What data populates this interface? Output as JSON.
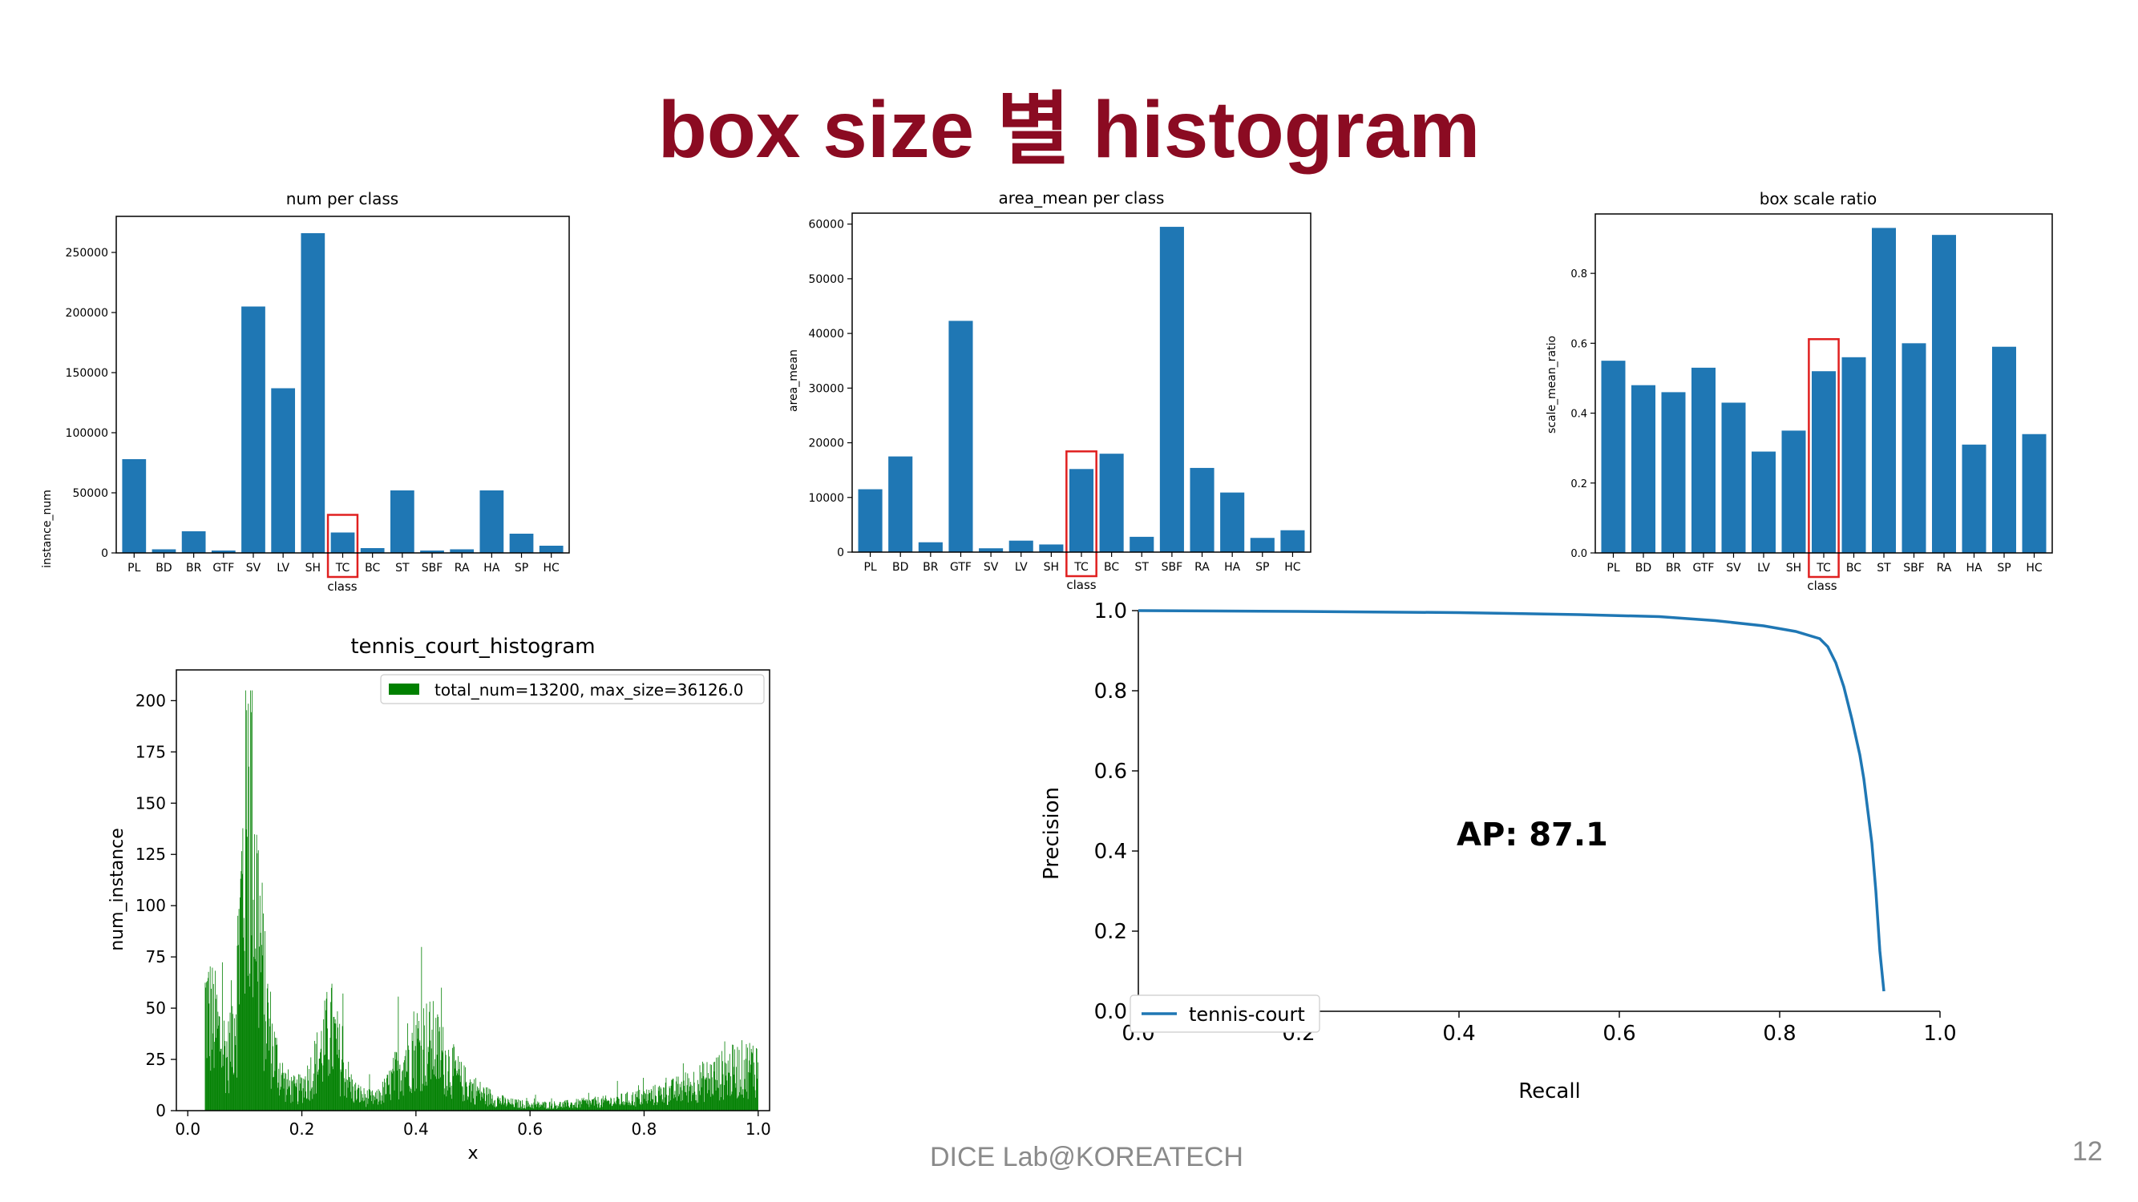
{
  "slide": {
    "title": "box size 별 histogram",
    "footer": "DICE Lab@KOREATECH",
    "page_number": "12",
    "accent_color": "#8b0b22",
    "highlight_color": "#e02020",
    "highlight_class": "TC"
  },
  "chart_data": [
    {
      "type": "bar",
      "title": "num per class",
      "xlabel": "class",
      "ylabel": "instance_num",
      "categories": [
        "PL",
        "BD",
        "BR",
        "GTF",
        "SV",
        "LV",
        "SH",
        "TC",
        "BC",
        "ST",
        "SBF",
        "RA",
        "HA",
        "SP",
        "HC"
      ],
      "values": [
        78000,
        3000,
        18000,
        2000,
        205000,
        137000,
        266000,
        17000,
        4000,
        52000,
        2000,
        3000,
        52000,
        16000,
        6000
      ],
      "ylim": [
        0,
        280000
      ],
      "yticks": [
        0,
        50000,
        100000,
        150000,
        200000,
        250000
      ],
      "color": "#1f77b4"
    },
    {
      "type": "bar",
      "title": "area_mean per class",
      "xlabel": "class",
      "ylabel": "area_mean",
      "categories": [
        "PL",
        "BD",
        "BR",
        "GTF",
        "SV",
        "LV",
        "SH",
        "TC",
        "BC",
        "ST",
        "SBF",
        "RA",
        "HA",
        "SP",
        "HC"
      ],
      "values": [
        11500,
        17500,
        1800,
        42300,
        700,
        2100,
        1400,
        15200,
        18000,
        2800,
        59500,
        15400,
        10900,
        2600,
        4000
      ],
      "ylim": [
        0,
        62000
      ],
      "yticks": [
        0,
        10000,
        20000,
        30000,
        40000,
        50000,
        60000
      ],
      "color": "#1f77b4"
    },
    {
      "type": "bar",
      "title": "box scale ratio",
      "xlabel": "class",
      "ylabel": "scale_mean_ratio",
      "categories": [
        "PL",
        "BD",
        "BR",
        "GTF",
        "SV",
        "LV",
        "SH",
        "TC",
        "BC",
        "ST",
        "SBF",
        "RA",
        "HA",
        "SP",
        "HC"
      ],
      "values": [
        0.55,
        0.48,
        0.46,
        0.53,
        0.43,
        0.29,
        0.35,
        0.52,
        0.56,
        0.93,
        0.6,
        0.91,
        0.31,
        0.59,
        0.34
      ],
      "ylim": [
        0,
        0.97
      ],
      "yticks": [
        0.0,
        0.2,
        0.4,
        0.6,
        0.8
      ],
      "color": "#1f77b4"
    },
    {
      "type": "bar",
      "title": "tennis_court_histogram",
      "xlabel": "x",
      "ylabel": "num_instance",
      "legend": "total_num=13200, max_size=36126.0",
      "legend_position": "top-right",
      "color": "#008000",
      "xlim": [
        -0.02,
        1.02
      ],
      "ylim": [
        0,
        215
      ],
      "xticks": [
        0.0,
        0.2,
        0.4,
        0.6,
        0.8,
        1.0
      ],
      "yticks": [
        0,
        25,
        50,
        75,
        100,
        125,
        150,
        175,
        200
      ],
      "bins": 1000,
      "x_start": 0.03,
      "x_end": 1.0,
      "envelope": [
        [
          0.03,
          55
        ],
        [
          0.05,
          42
        ],
        [
          0.07,
          28
        ],
        [
          0.085,
          60
        ],
        [
          0.1,
          140
        ],
        [
          0.11,
          165
        ],
        [
          0.12,
          110
        ],
        [
          0.135,
          55
        ],
        [
          0.15,
          30
        ],
        [
          0.17,
          14
        ],
        [
          0.19,
          10
        ],
        [
          0.21,
          16
        ],
        [
          0.23,
          28
        ],
        [
          0.25,
          42
        ],
        [
          0.27,
          24
        ],
        [
          0.29,
          10
        ],
        [
          0.31,
          7
        ],
        [
          0.33,
          6
        ],
        [
          0.35,
          12
        ],
        [
          0.37,
          22
        ],
        [
          0.39,
          32
        ],
        [
          0.41,
          36
        ],
        [
          0.43,
          34
        ],
        [
          0.45,
          26
        ],
        [
          0.48,
          15
        ],
        [
          0.52,
          8
        ],
        [
          0.56,
          4
        ],
        [
          0.6,
          3
        ],
        [
          0.65,
          3
        ],
        [
          0.7,
          4
        ],
        [
          0.75,
          5
        ],
        [
          0.8,
          7
        ],
        [
          0.85,
          10
        ],
        [
          0.9,
          15
        ],
        [
          0.95,
          20
        ],
        [
          1.0,
          24
        ]
      ]
    },
    {
      "type": "line",
      "xlabel": "Recall",
      "ylabel": "Precision",
      "xlim": [
        0.0,
        1.0
      ],
      "ylim": [
        0.0,
        1.0
      ],
      "xticks": [
        0.0,
        0.2,
        0.4,
        0.6,
        0.8,
        1.0
      ],
      "yticks": [
        0.0,
        0.2,
        0.4,
        0.6,
        0.8,
        1.0
      ],
      "annotation": "AP: 87.1",
      "legend_position": "bottom-left",
      "series": [
        {
          "name": "tennis-court",
          "color": "#1f77b4",
          "x": [
            0.0,
            0.2,
            0.4,
            0.55,
            0.65,
            0.72,
            0.78,
            0.82,
            0.85,
            0.86,
            0.87,
            0.88,
            0.89,
            0.9,
            0.905,
            0.91,
            0.915,
            0.92,
            0.925,
            0.93
          ],
          "y": [
            1.0,
            0.998,
            0.995,
            0.99,
            0.985,
            0.975,
            0.962,
            0.948,
            0.93,
            0.91,
            0.87,
            0.81,
            0.73,
            0.64,
            0.58,
            0.5,
            0.42,
            0.3,
            0.15,
            0.05
          ]
        }
      ]
    }
  ]
}
